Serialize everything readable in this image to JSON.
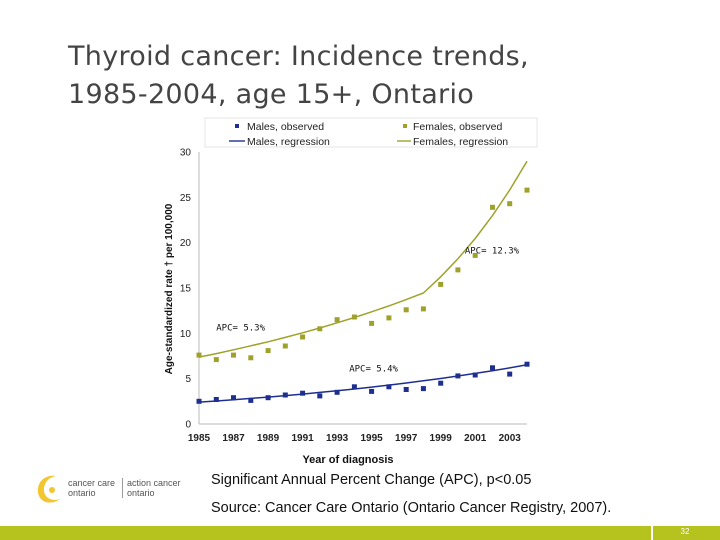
{
  "slide": {
    "title_line1": "Thyroid cancer: Incidence trends,",
    "title_line2": "1985-2004, age 15+, Ontario",
    "note_significance": "Significant Annual Percent Change (APC), p<0.05",
    "note_source": "Source: Cancer Care Ontario (Ontario Cancer Registry, 2007).",
    "page_number": "32"
  },
  "logo": {
    "line1_left": "cancer care",
    "line2_left": "ontario",
    "line1_right": "action cancer",
    "line2_right": "ontario"
  },
  "colors": {
    "males": "#1f2f8f",
    "females": "#9ea22a",
    "brand_bar": "#b6c21e",
    "logo_swoosh": "#f2c531"
  },
  "chart_data": {
    "type": "scatter",
    "xlabel": "Year of diagnosis",
    "ylabel": "Age-standardized rate † per 100,000",
    "xlim": [
      1985,
      2004
    ],
    "ylim": [
      0,
      30
    ],
    "x_ticks": [
      "1985",
      "1987",
      "1989",
      "1991",
      "1993",
      "1995",
      "1997",
      "1999",
      "2001",
      "2003"
    ],
    "y_ticks": [
      "0",
      "5",
      "10",
      "15",
      "20",
      "25",
      "30"
    ],
    "legend": {
      "placement": "top",
      "entries": [
        "Males, observed",
        "Females, observed",
        "Males, regression",
        "Females, regression"
      ]
    },
    "x": [
      1985,
      1986,
      1987,
      1988,
      1989,
      1990,
      1991,
      1992,
      1993,
      1994,
      1995,
      1996,
      1997,
      1998,
      1999,
      2000,
      2001,
      2002,
      2003,
      2004
    ],
    "series": [
      {
        "name": "Males, observed",
        "values": [
          2.5,
          2.7,
          2.9,
          2.6,
          2.9,
          3.2,
          3.4,
          3.1,
          3.5,
          4.1,
          3.6,
          4.1,
          3.8,
          3.9,
          4.5,
          5.3,
          5.4,
          6.2,
          5.5,
          6.6
        ]
      },
      {
        "name": "Females, observed",
        "values": [
          7.6,
          7.1,
          7.6,
          7.3,
          8.1,
          8.6,
          9.6,
          10.5,
          11.5,
          11.8,
          11.1,
          11.7,
          12.6,
          12.7,
          15.4,
          17.0,
          18.6,
          23.9,
          24.3,
          25.8
        ]
      },
      {
        "name": "Males, regression",
        "values": [
          2.41,
          2.54,
          2.68,
          2.82,
          2.97,
          3.13,
          3.3,
          3.48,
          3.66,
          3.86,
          4.07,
          4.29,
          4.52,
          4.76,
          5.02,
          5.29,
          5.58,
          5.88,
          6.19,
          6.53
        ]
      },
      {
        "name": "Females, regression",
        "values": [
          7.38,
          7.77,
          8.18,
          8.62,
          9.07,
          9.55,
          10.06,
          10.59,
          11.16,
          11.75,
          12.37,
          13.03,
          13.72,
          14.45,
          16.23,
          18.22,
          20.46,
          22.98,
          25.81,
          28.98
        ]
      }
    ],
    "annotations": [
      {
        "text": "APC= 12.3%",
        "x": 2000.4,
        "y": 18.8
      },
      {
        "text": "APC= 5.3%",
        "x": 1986.0,
        "y": 10.3
      },
      {
        "text": "APC= 5.4%",
        "x": 1993.7,
        "y": 5.8
      }
    ]
  }
}
